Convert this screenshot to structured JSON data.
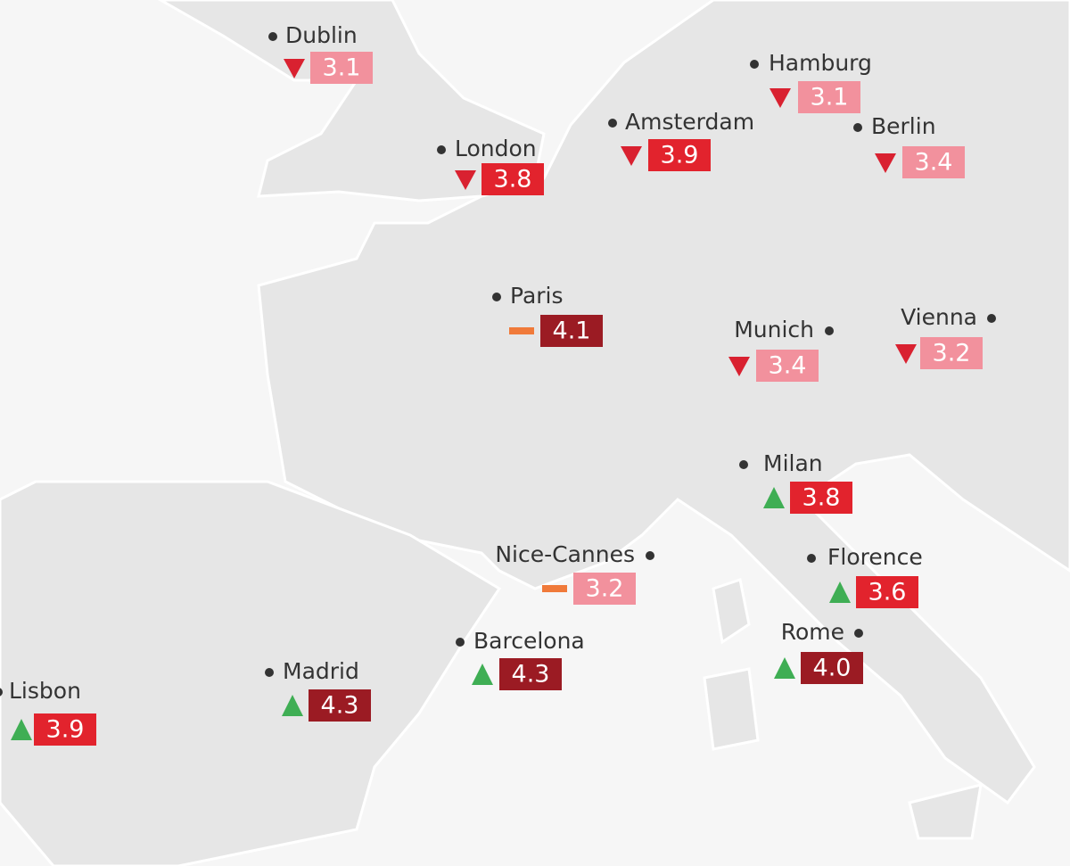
{
  "cities": [
    {
      "name": "Dublin",
      "value": "3.1",
      "trend": "down",
      "color": "#f2919d"
    },
    {
      "name": "Hamburg",
      "value": "3.1",
      "trend": "down",
      "color": "#f2919d"
    },
    {
      "name": "Amsterdam",
      "value": "3.9",
      "trend": "down",
      "color": "#e2232d"
    },
    {
      "name": "Berlin",
      "value": "3.4",
      "trend": "down",
      "color": "#f2919d"
    },
    {
      "name": "London",
      "value": "3.8",
      "trend": "down",
      "color": "#e2232d"
    },
    {
      "name": "Paris",
      "value": "4.1",
      "trend": "flat",
      "color": "#9b1b23"
    },
    {
      "name": "Munich",
      "value": "3.4",
      "trend": "down",
      "color": "#f2919d"
    },
    {
      "name": "Vienna",
      "value": "3.2",
      "trend": "down",
      "color": "#f2919d"
    },
    {
      "name": "Milan",
      "value": "3.8",
      "trend": "up",
      "color": "#e2232d"
    },
    {
      "name": "Nice-Cannes",
      "value": "3.2",
      "trend": "flat",
      "color": "#f2919d"
    },
    {
      "name": "Florence",
      "value": "3.6",
      "trend": "up",
      "color": "#e2232d"
    },
    {
      "name": "Barcelona",
      "value": "4.3",
      "trend": "up",
      "color": "#9b1b23"
    },
    {
      "name": "Rome",
      "value": "4.0",
      "trend": "up",
      "color": "#9b1b23"
    },
    {
      "name": "Madrid",
      "value": "4.3",
      "trend": "up",
      "color": "#9b1b23"
    },
    {
      "name": "Lisbon",
      "value": "3.9",
      "trend": "up",
      "color": "#e2232d"
    }
  ]
}
